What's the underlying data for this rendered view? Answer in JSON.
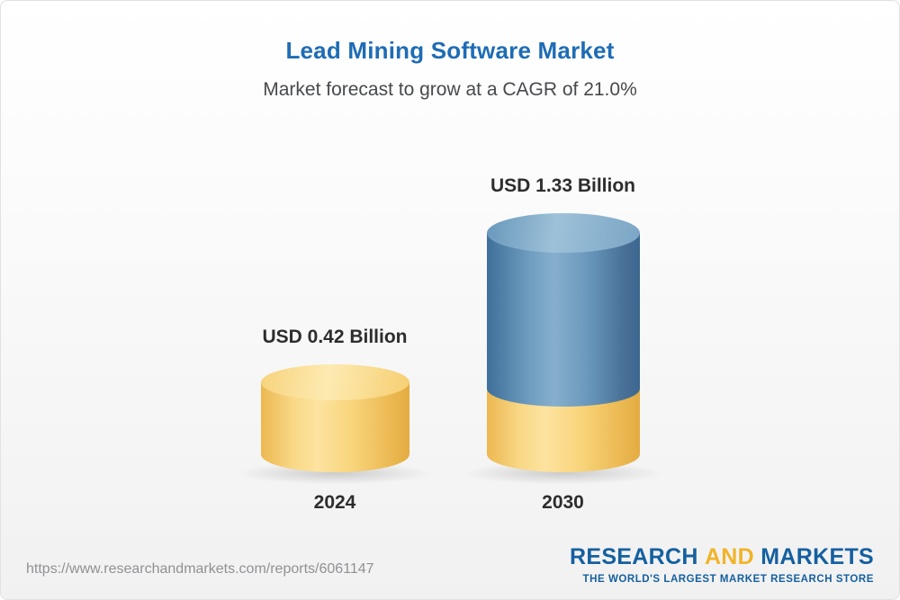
{
  "page": {
    "title": "Lead Mining Software Market",
    "subtitle": "Market forecast to grow at a CAGR of 21.0%"
  },
  "chart_data": {
    "type": "bar",
    "variant": "3d-cylinder-infographic",
    "title": "Lead Mining Software Market",
    "subtitle": "Market forecast to grow at a CAGR of 21.0%",
    "cagr_percent": 21.0,
    "unit": "USD Billion",
    "categories": [
      "2024",
      "2030"
    ],
    "series": [
      {
        "name": "Market size (USD Billion)",
        "values": [
          0.42,
          1.33
        ]
      }
    ],
    "value_labels": [
      "USD 0.42 Billion",
      "USD 1.33 Billion"
    ],
    "xlabel": "",
    "ylabel": "",
    "axes": "none",
    "grid": false,
    "legend": "none",
    "colors": {
      "bar_2024": "#f8d47a",
      "bar_2030_top": "#5d8db4",
      "bar_2030_base": "#f8d47a",
      "title_accent": "#1e6cb5"
    }
  },
  "bars": [
    {
      "year": "2024",
      "label": "USD 0.42 Billion"
    },
    {
      "year": "2030",
      "label": "USD 1.33 Billion"
    }
  ],
  "footer": {
    "url": "https://www.researchandmarkets.com/reports/6061147",
    "logo": {
      "research": "RESEARCH",
      "and": "AND",
      "markets": "MARKETS",
      "tagline": "THE WORLD'S LARGEST MARKET RESEARCH STORE"
    }
  }
}
